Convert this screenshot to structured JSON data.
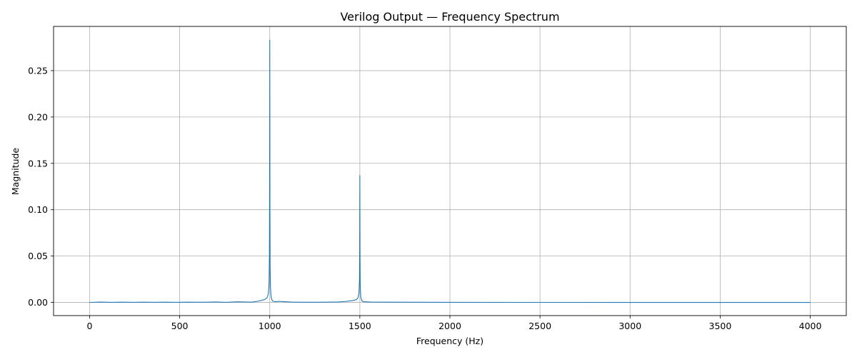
{
  "chart_data": {
    "type": "line",
    "title": "Verilog Output — Frequency Spectrum",
    "xlabel": "Frequency (Hz)",
    "ylabel": "Magnitude",
    "xlim": [
      -200,
      4200
    ],
    "ylim": [
      -0.0142,
      0.2977
    ],
    "xticks": [
      0,
      500,
      1000,
      1500,
      2000,
      2500,
      3000,
      3500,
      4000
    ],
    "xtick_labels": [
      "0",
      "500",
      "1000",
      "1500",
      "2000",
      "2500",
      "3000",
      "3500",
      "4000"
    ],
    "yticks": [
      0.0,
      0.05,
      0.1,
      0.15,
      0.2,
      0.25
    ],
    "ytick_labels": [
      "0.00",
      "0.05",
      "0.10",
      "0.15",
      "0.20",
      "0.25"
    ],
    "grid": true,
    "legend": "none",
    "line_color": "#1f77b4",
    "series": [
      {
        "x": [
          0,
          60,
          80,
          120,
          180,
          240,
          300,
          360,
          420,
          480,
          540,
          600,
          660,
          700,
          760,
          820,
          860,
          900,
          940,
          970,
          985,
          992,
          996,
          998,
          999,
          1000,
          1001,
          1002,
          1004,
          1008,
          1015,
          1030,
          1050,
          1080,
          1120,
          1180,
          1250,
          1320,
          1380,
          1420,
          1460,
          1480,
          1490,
          1495,
          1498,
          1499,
          1500,
          1501,
          1502,
          1505,
          1510,
          1520,
          1560,
          1650,
          2000,
          2500,
          3000,
          3500,
          4000
        ],
        "y": [
          0.0,
          0.0004,
          0.0003,
          0.0001,
          0.0003,
          0.0001,
          0.0003,
          0.0001,
          0.0003,
          0.0001,
          0.0003,
          0.0002,
          0.0003,
          0.0005,
          0.0001,
          0.0007,
          0.0005,
          0.0003,
          0.0015,
          0.003,
          0.005,
          0.009,
          0.02,
          0.05,
          0.12,
          0.283,
          0.1,
          0.04,
          0.015,
          0.005,
          0.0015,
          0.0008,
          0.0012,
          0.0008,
          0.0004,
          0.0002,
          0.0002,
          0.0003,
          0.0005,
          0.001,
          0.002,
          0.003,
          0.005,
          0.01,
          0.025,
          0.06,
          0.137,
          0.05,
          0.02,
          0.006,
          0.002,
          0.0008,
          0.0004,
          0.0003,
          0.0001,
          5e-05,
          3e-05,
          2e-05,
          0.0
        ]
      }
    ]
  }
}
